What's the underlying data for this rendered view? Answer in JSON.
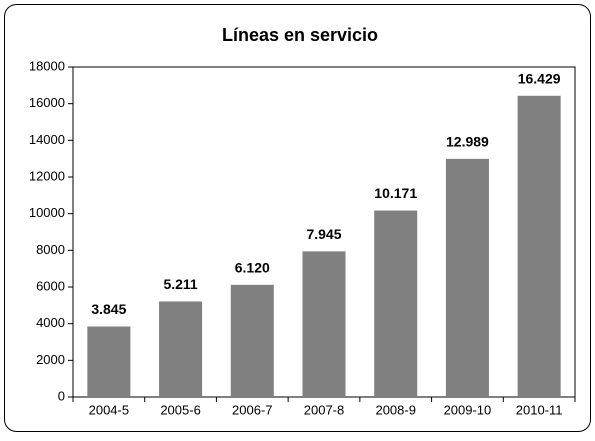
{
  "chart_data": {
    "type": "bar",
    "title": "Líneas en servicio",
    "categories": [
      "2004-5",
      "2005-6",
      "2006-7",
      "2007-8",
      "2008-9",
      "2009-10",
      "2010-11"
    ],
    "values": [
      3845,
      5211,
      6120,
      7945,
      10171,
      12989,
      16429
    ],
    "value_labels": [
      "3.845",
      "5.211",
      "6.120",
      "7.945",
      "10.171",
      "12.989",
      "16.429"
    ],
    "color": "#808080",
    "ylim": [
      0,
      18000
    ],
    "yticks": [
      0,
      2000,
      4000,
      6000,
      8000,
      10000,
      12000,
      14000,
      16000,
      18000
    ],
    "grid": false
  }
}
